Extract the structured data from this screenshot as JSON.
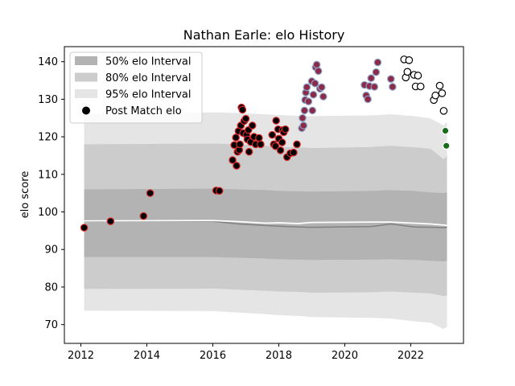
{
  "chart_data": {
    "type": "scatter",
    "title": "Nathan Earle: elo History",
    "xlabel": "",
    "ylabel": "elo score",
    "xlim": [
      2011.5,
      2023.6
    ],
    "ylim": [
      65,
      144
    ],
    "xticks": [
      2012,
      2014,
      2016,
      2018,
      2020,
      2022
    ],
    "yticks": [
      70,
      80,
      90,
      100,
      110,
      120,
      130,
      140
    ],
    "grid": false,
    "legend_position": "top-left",
    "legend": [
      {
        "label": "50% elo Interval",
        "kind": "band",
        "color": "#b3b3b3"
      },
      {
        "label": "80% elo Interval",
        "kind": "band",
        "color": "#cccccc"
      },
      {
        "label": "95% elo Interval",
        "kind": "band",
        "color": "#e5e5e5"
      },
      {
        "label": "Post Match elo",
        "kind": "marker",
        "color": "#000000"
      }
    ],
    "band_x": [
      2012.1,
      2016.0,
      2016.8,
      2017.6,
      2018.0,
      2018.6,
      2019.0,
      2020.8,
      2021.4,
      2022.1,
      2022.6,
      2023.0,
      2023.1
    ],
    "median": [
      97.5,
      97.5,
      96.8,
      96.4,
      96.2,
      96.0,
      95.9,
      96.1,
      96.8,
      96.0,
      95.9,
      95.8,
      95.9
    ],
    "mean_line": [
      97.6,
      97.7,
      97.4,
      97.0,
      97.1,
      96.9,
      97.2,
      97.3,
      97.3,
      97.0,
      96.8,
      96.5,
      96.4
    ],
    "band_50": {
      "low": [
        88.0,
        88.0,
        87.8,
        87.6,
        87.4,
        87.3,
        87.2,
        87.3,
        87.4,
        87.2,
        87.0,
        86.8,
        87.0
      ],
      "high": [
        106.0,
        106.2,
        106.0,
        105.8,
        105.6,
        105.5,
        105.4,
        105.6,
        105.8,
        105.6,
        105.2,
        105.0,
        105.2
      ]
    },
    "band_80": {
      "low": [
        79.5,
        79.6,
        79.3,
        79.0,
        78.8,
        78.7,
        78.5,
        78.6,
        78.8,
        78.5,
        78.3,
        77.6,
        77.8
      ],
      "high": [
        118.0,
        118.2,
        118.0,
        117.6,
        117.3,
        117.2,
        117.0,
        117.3,
        117.6,
        117.2,
        116.8,
        114.0,
        115.0
      ]
    },
    "band_95": {
      "low": [
        73.7,
        73.6,
        73.2,
        72.8,
        72.5,
        72.3,
        72.0,
        71.8,
        71.6,
        70.9,
        70.5,
        68.8,
        69.5
      ],
      "high": [
        126.0,
        126.5,
        126.3,
        126.0,
        125.8,
        125.6,
        125.5,
        125.7,
        126.0,
        125.5,
        124.9,
        123.0,
        124.0
      ]
    },
    "series": [
      {
        "edge": "#d62728",
        "face": "#000000",
        "points": [
          [
            2012.1,
            95.8
          ],
          [
            2012.9,
            97.5
          ],
          [
            2013.9,
            98.9
          ],
          [
            2014.1,
            105.0
          ],
          [
            2016.1,
            105.7
          ],
          [
            2016.2,
            105.6
          ],
          [
            2016.6,
            113.8
          ],
          [
            2016.65,
            117.8
          ],
          [
            2016.7,
            119.8
          ],
          [
            2016.72,
            112.3
          ],
          [
            2016.75,
            116.0
          ],
          [
            2016.78,
            121.5
          ],
          [
            2016.8,
            116.5
          ],
          [
            2016.82,
            118.0
          ],
          [
            2016.85,
            123.0
          ],
          [
            2016.87,
            127.8
          ],
          [
            2016.9,
            127.2
          ],
          [
            2016.92,
            121.0
          ],
          [
            2016.95,
            124.2
          ],
          [
            2017.0,
            124.8
          ],
          [
            2017.02,
            120.5
          ],
          [
            2017.05,
            119.3
          ],
          [
            2017.08,
            121.8
          ],
          [
            2017.1,
            116.0
          ],
          [
            2017.15,
            118.6
          ],
          [
            2017.2,
            123.0
          ],
          [
            2017.25,
            120.0
          ],
          [
            2017.3,
            118.0
          ],
          [
            2017.4,
            119.7
          ],
          [
            2017.45,
            118.0
          ],
          [
            2017.8,
            120.5
          ],
          [
            2017.85,
            118.0
          ],
          [
            2017.9,
            117.5
          ],
          [
            2017.92,
            124.3
          ],
          [
            2017.98,
            122.0
          ],
          [
            2018.0,
            119.5
          ],
          [
            2018.05,
            116.4
          ],
          [
            2018.1,
            118.5
          ],
          [
            2018.12,
            121.8
          ],
          [
            2018.15,
            121.2
          ],
          [
            2018.2,
            122.0
          ],
          [
            2018.25,
            114.6
          ],
          [
            2018.35,
            115.6
          ],
          [
            2018.45,
            115.8
          ],
          [
            2018.55,
            118.0
          ]
        ]
      },
      {
        "edge": "#8aa4c8",
        "face": "#8c2a48",
        "points": [
          [
            2018.7,
            122.3
          ],
          [
            2018.72,
            125.0
          ],
          [
            2018.75,
            123.0
          ],
          [
            2018.78,
            127.0
          ],
          [
            2018.8,
            129.8
          ],
          [
            2018.82,
            131.8
          ],
          [
            2018.85,
            133.2
          ],
          [
            2018.9,
            129.4
          ],
          [
            2019.0,
            134.8
          ],
          [
            2019.02,
            127.0
          ],
          [
            2019.05,
            131.2
          ],
          [
            2019.1,
            134.2
          ],
          [
            2019.12,
            138.5
          ],
          [
            2019.15,
            139.2
          ],
          [
            2019.2,
            137.5
          ],
          [
            2019.25,
            132.8
          ],
          [
            2019.3,
            133.2
          ],
          [
            2019.35,
            130.7
          ],
          [
            2020.6,
            133.8
          ],
          [
            2020.65,
            131.0
          ],
          [
            2020.7,
            130.0
          ],
          [
            2020.75,
            133.5
          ],
          [
            2020.8,
            135.6
          ],
          [
            2020.9,
            133.3
          ],
          [
            2020.95,
            137.2
          ],
          [
            2021.0,
            139.8
          ],
          [
            2021.4,
            135.4
          ],
          [
            2021.45,
            133.3
          ]
        ]
      },
      {
        "edge": "#000000",
        "face": "#ffffff",
        "points": [
          [
            2021.8,
            140.6
          ],
          [
            2021.85,
            135.8
          ],
          [
            2021.9,
            137.3
          ],
          [
            2021.95,
            140.4
          ],
          [
            2022.1,
            136.5
          ],
          [
            2022.15,
            133.4
          ],
          [
            2022.22,
            136.3
          ],
          [
            2022.3,
            133.4
          ],
          [
            2022.7,
            129.8
          ],
          [
            2022.75,
            131.0
          ],
          [
            2022.88,
            133.6
          ],
          [
            2022.95,
            131.6
          ],
          [
            2023.0,
            126.9
          ]
        ]
      },
      {
        "edge": "#ffffff",
        "face": "#1a6b1a",
        "points": [
          [
            2023.05,
            121.6
          ],
          [
            2023.08,
            117.6
          ]
        ]
      }
    ]
  }
}
